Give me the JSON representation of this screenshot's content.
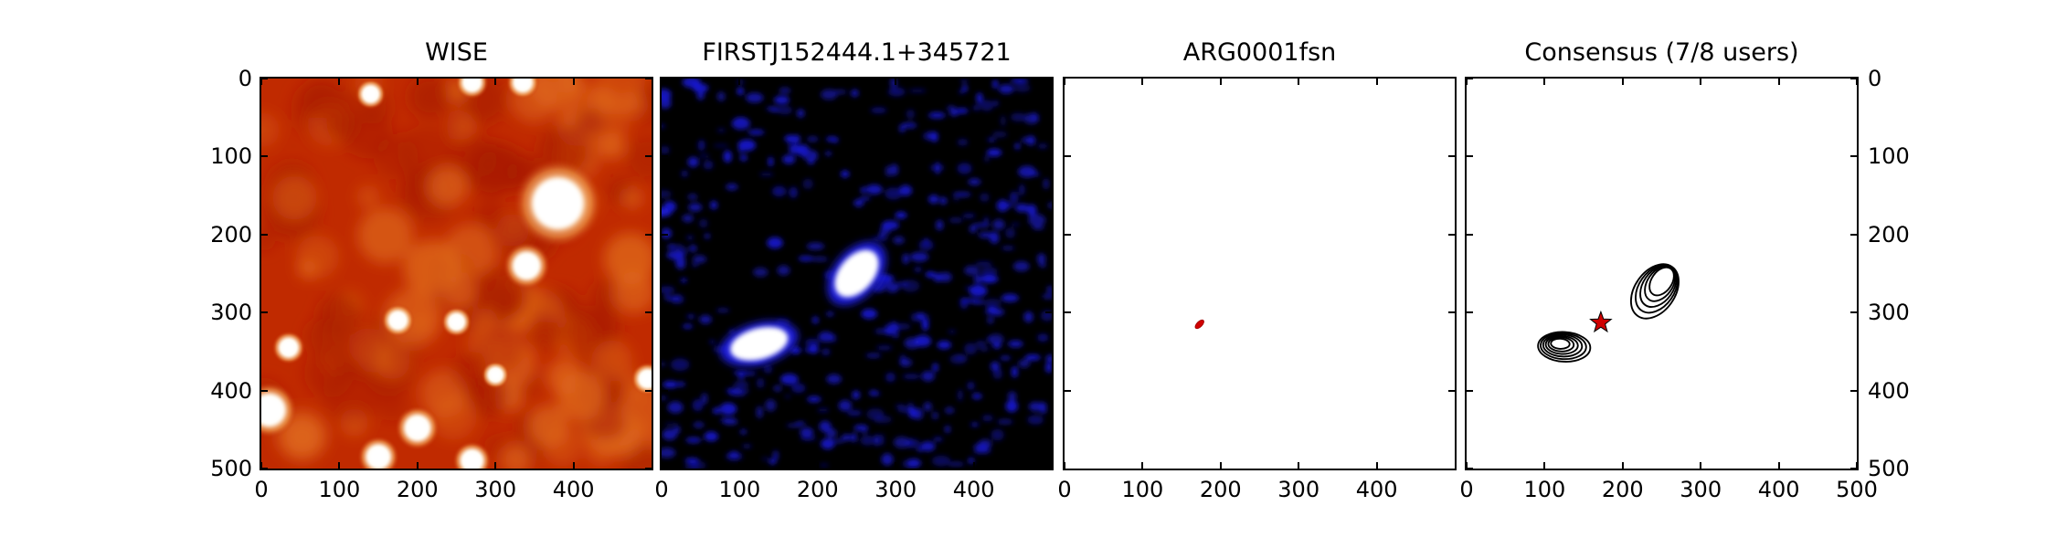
{
  "figure": {
    "panels": [
      {
        "title": "WISE"
      },
      {
        "title": "FIRSTJ152444.1+345721"
      },
      {
        "title": "ARG0001fsn"
      },
      {
        "title": "Consensus (7/8 users)"
      }
    ]
  },
  "colors": {
    "wise_background": "#c02a00",
    "wise_source": "#ffffff",
    "first_background": "#000000",
    "first_noise": "#1a1ad8",
    "first_source": "#ffffff",
    "marker_red": "#d00000",
    "contour": "#000000"
  },
  "chart_data": [
    {
      "type": "image",
      "title": "WISE",
      "xlim": [
        0,
        500
      ],
      "ylim": [
        500,
        0
      ],
      "xticks": [
        0,
        100,
        200,
        300,
        400
      ],
      "yticks": [
        0,
        100,
        200,
        300,
        400,
        500
      ],
      "sources": [
        {
          "x": 380,
          "y": 160,
          "size": 32
        },
        {
          "x": 340,
          "y": 240,
          "size": 17
        },
        {
          "x": 10,
          "y": 425,
          "size": 20
        },
        {
          "x": 200,
          "y": 448,
          "size": 16
        },
        {
          "x": 150,
          "y": 485,
          "size": 15
        },
        {
          "x": 270,
          "y": 490,
          "size": 14
        },
        {
          "x": 35,
          "y": 345,
          "size": 12
        },
        {
          "x": 250,
          "y": 312,
          "size": 11
        },
        {
          "x": 495,
          "y": 385,
          "size": 12
        },
        {
          "x": 270,
          "y": 5,
          "size": 12
        },
        {
          "x": 335,
          "y": 5,
          "size": 12
        },
        {
          "x": 175,
          "y": 310,
          "size": 12
        },
        {
          "x": 140,
          "y": 20,
          "size": 11
        },
        {
          "x": 300,
          "y": 380,
          "size": 10
        }
      ]
    },
    {
      "type": "image",
      "title": "FIRSTJ152444.1+345721",
      "xlim": [
        0,
        500
      ],
      "ylim": [
        500,
        0
      ],
      "xticks": [
        0,
        100,
        200,
        300,
        400
      ],
      "sources": [
        {
          "x": 250,
          "y": 250,
          "rx": 22,
          "ry": 35,
          "angle": 40
        },
        {
          "x": 125,
          "y": 340,
          "rx": 38,
          "ry": 20,
          "angle": -15
        }
      ]
    },
    {
      "type": "scatter",
      "title": "ARG0001fsn",
      "xlim": [
        0,
        500
      ],
      "ylim": [
        500,
        0
      ],
      "xticks": [
        0,
        100,
        200,
        300,
        400
      ],
      "points": [
        {
          "x": 173,
          "y": 315,
          "marker": "ellipse",
          "color": "red"
        }
      ]
    },
    {
      "type": "contour",
      "title": "Consensus (7/8 users)",
      "xlim": [
        0,
        500
      ],
      "ylim": [
        500,
        0
      ],
      "xticks": [
        0,
        100,
        200,
        300,
        400,
        500
      ],
      "yticks": [
        0,
        100,
        200,
        300,
        400,
        500
      ],
      "contour_groups": [
        {
          "x": 250,
          "y": 260,
          "levels": 5
        },
        {
          "x": 120,
          "y": 340,
          "levels": 6
        }
      ],
      "marker": {
        "x": 172,
        "y": 313,
        "shape": "star",
        "color": "red"
      }
    }
  ]
}
